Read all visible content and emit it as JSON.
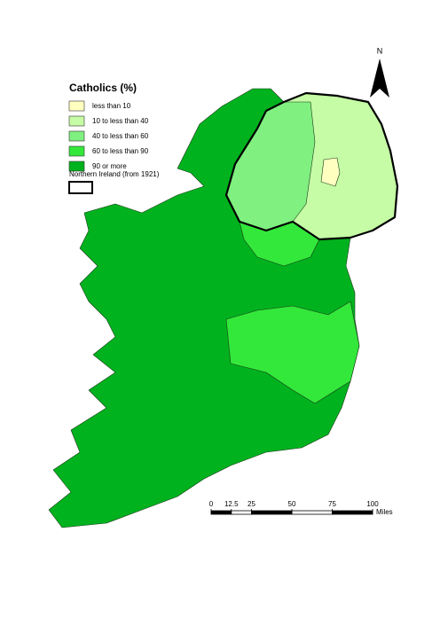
{
  "legend": {
    "title": "Catholics (%)",
    "items": [
      {
        "label": "less than 10",
        "color": "#ffffc0"
      },
      {
        "label": "10 to less than 40",
        "color": "#c5fca5"
      },
      {
        "label": "40 to less than 60",
        "color": "#80f080"
      },
      {
        "label": "60 to less than 90",
        "color": "#33e83a"
      },
      {
        "label": "90 or more",
        "color": "#00b21e"
      }
    ],
    "boundary": "Northern Ireland (from 1921)"
  },
  "north": "N",
  "scale": {
    "ticks": [
      0,
      12.5,
      25,
      50,
      75,
      100
    ],
    "unit": "Miles"
  }
}
